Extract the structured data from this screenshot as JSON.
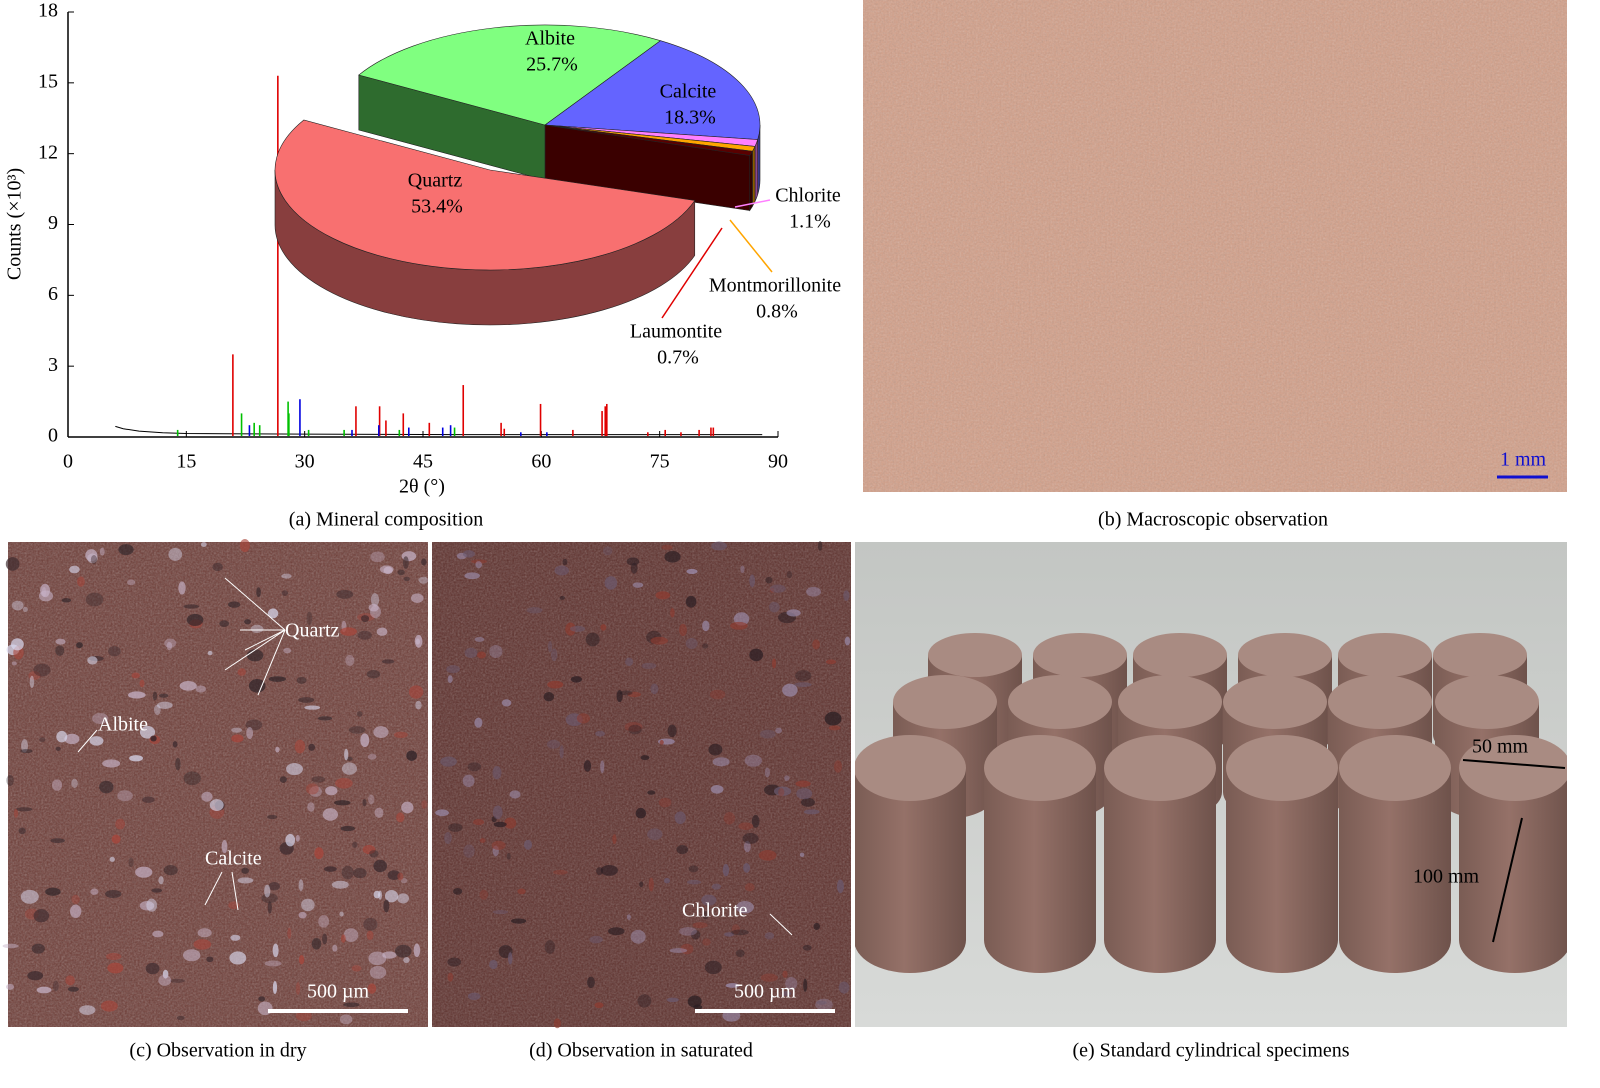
{
  "chart_data": [
    {
      "type": "stem",
      "xlabel": "2θ (°)",
      "ylabel": "Counts (×10³)",
      "xlim": [
        0,
        90
      ],
      "xticks": [
        0,
        15,
        30,
        45,
        60,
        75,
        90
      ],
      "ylim": [
        0,
        18
      ],
      "yticks": [
        0,
        3,
        6,
        9,
        12,
        15,
        18
      ],
      "series": [
        {
          "color": "#000000",
          "style": "line",
          "x": [
            6,
            7,
            9,
            12,
            15,
            20,
            30,
            40,
            50,
            60,
            70,
            80,
            88
          ],
          "values": [
            0.45,
            0.35,
            0.25,
            0.18,
            0.15,
            0.14,
            0.12,
            0.11,
            0.1,
            0.1,
            0.1,
            0.1,
            0.1
          ]
        },
        {
          "color": "#e00000",
          "x": [
            20.9,
            26.6,
            36.5,
            39.5,
            40.3,
            42.5,
            45.8,
            50.1,
            54.9,
            55.3,
            59.9,
            64.0,
            67.7,
            68.1,
            68.3,
            73.5,
            75.7,
            77.7,
            80.0,
            81.5,
            81.8
          ],
          "values": [
            3.5,
            15.3,
            1.3,
            1.3,
            0.7,
            1.0,
            0.6,
            2.2,
            0.6,
            0.35,
            1.4,
            0.3,
            1.1,
            1.3,
            1.4,
            0.2,
            0.3,
            0.2,
            0.3,
            0.4,
            0.4
          ]
        },
        {
          "color": "#00c000",
          "x": [
            13.9,
            22.0,
            23.6,
            24.3,
            27.9,
            28.0,
            30.5,
            35.0,
            42.0,
            49.0
          ],
          "values": [
            0.3,
            1.0,
            0.6,
            0.5,
            1.5,
            1.0,
            0.3,
            0.3,
            0.3,
            0.4
          ]
        },
        {
          "color": "#0000e0",
          "x": [
            23.0,
            29.4,
            36.0,
            39.4,
            43.2,
            47.5,
            48.5,
            57.4,
            60.7
          ],
          "values": [
            0.5,
            1.6,
            0.3,
            0.5,
            0.4,
            0.4,
            0.5,
            0.2,
            0.2
          ]
        }
      ]
    },
    {
      "type": "pie",
      "categories": [
        "Albite",
        "Calcite",
        "Chlorite",
        "Montmorillonite",
        "Laumontite",
        "Quartz"
      ],
      "values": [
        25.7,
        18.3,
        1.1,
        0.8,
        0.7,
        53.4
      ],
      "value_labels": [
        "25.7%",
        "18.3%",
        "1.1%",
        "0.8%",
        "0.7%",
        "53.4%"
      ],
      "colors": [
        "#80ff80",
        "#6464ff",
        "#ff80ff",
        "#ffa500",
        "#5a0000",
        "#f87070"
      ]
    }
  ],
  "panels": [
    {
      "caption": "(a) Mineral composition"
    },
    {
      "caption": "(b) Macroscopic observation",
      "scale_bar": "1 mm"
    },
    {
      "caption": "(c) Observation in dry",
      "labels": [
        "Quartz",
        "Albite",
        "Calcite"
      ],
      "scale_bar": "500 µm"
    },
    {
      "caption": "(d) Observation in saturated",
      "labels": [
        "Chlorite"
      ],
      "scale_bar": "500 µm"
    },
    {
      "caption": "(e) Standard cylindrical specimens",
      "labels": [
        "50 mm",
        "100 mm"
      ]
    }
  ]
}
